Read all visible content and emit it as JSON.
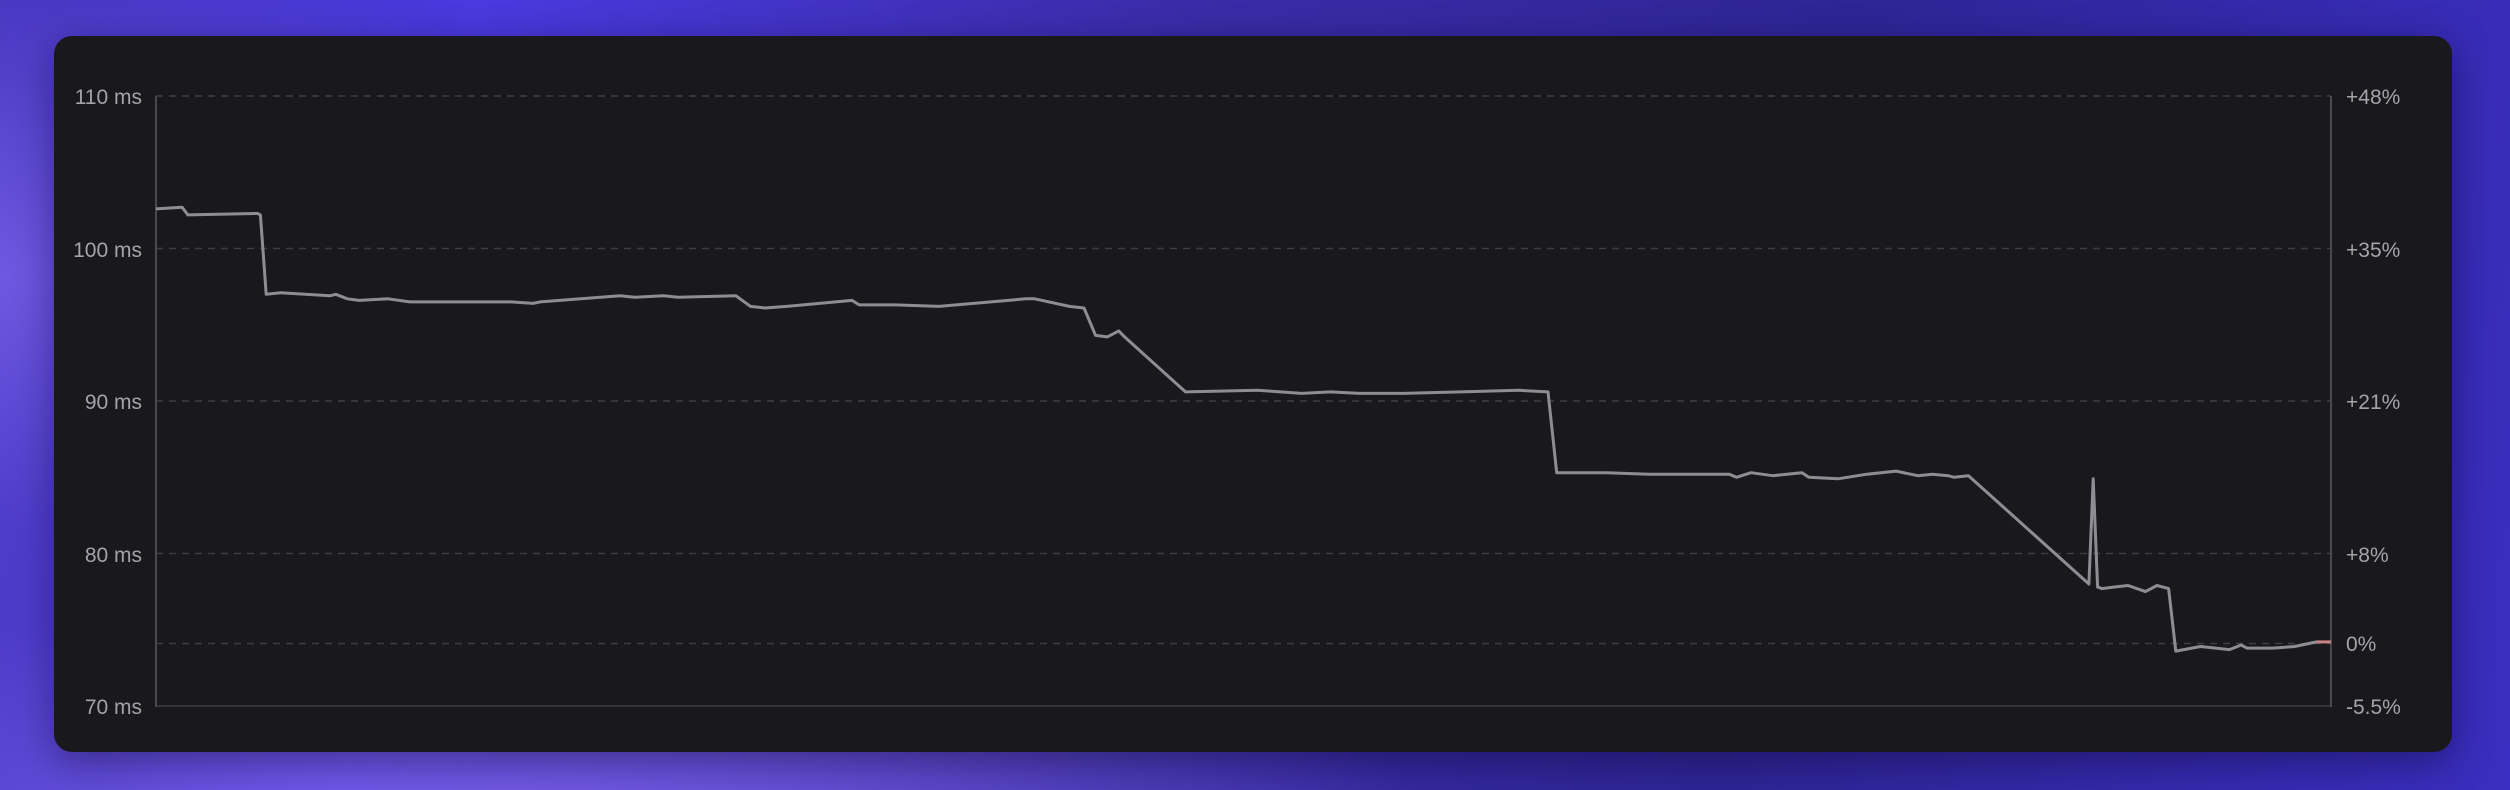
{
  "chart_data": {
    "type": "line",
    "title": "",
    "xlabel": "",
    "ylabel": "",
    "ylim": [
      70,
      110
    ],
    "y_ticks": [
      "110 ms",
      "100 ms",
      "90 ms",
      "80 ms",
      "70 ms"
    ],
    "y_tick_values": [
      110,
      100,
      90,
      80,
      70
    ],
    "y2_ticks": [
      "+48%",
      "+35%",
      "+21%",
      "+8%",
      "0%",
      "-5.5%"
    ],
    "y2_tick_values": [
      110,
      100,
      90,
      80,
      74.1,
      70
    ],
    "grid": true,
    "x_range": [
      0,
      1500
    ],
    "series": [
      {
        "color": "#8e8d93",
        "x": [
          0,
          18,
          22,
          70,
          72,
          76,
          86,
          120,
          124,
          132,
          140,
          160,
          175,
          210,
          245,
          260,
          265,
          320,
          330,
          350,
          360,
          400,
          410,
          420,
          435,
          480,
          485,
          510,
          540,
          600,
          606,
          630,
          640,
          648,
          656,
          664,
          668,
          710,
          760,
          790,
          810,
          830,
          860,
          900,
          940,
          960,
          966,
          1000,
          1030,
          1060,
          1085,
          1090,
          1100,
          1115,
          1135,
          1140,
          1160,
          1180,
          1200,
          1215,
          1225,
          1236,
          1240,
          1250,
          1333,
          1336,
          1339,
          1342,
          1350,
          1360,
          1372,
          1380,
          1388,
          1393,
          1410,
          1430,
          1438,
          1442,
          1460,
          1475,
          1490,
          1500
        ],
        "values": [
          102.6,
          102.7,
          102.2,
          102.3,
          102.2,
          97.0,
          97.1,
          96.9,
          97.0,
          96.7,
          96.6,
          96.7,
          96.5,
          96.5,
          96.5,
          96.4,
          96.5,
          96.9,
          96.8,
          96.9,
          96.8,
          96.9,
          96.2,
          96.1,
          96.2,
          96.6,
          96.3,
          96.3,
          96.2,
          96.7,
          96.7,
          96.2,
          96.1,
          94.3,
          94.2,
          94.6,
          94.2,
          90.6,
          90.7,
          90.5,
          90.6,
          90.5,
          90.5,
          90.6,
          90.7,
          90.6,
          85.3,
          85.3,
          85.2,
          85.2,
          85.2,
          85.0,
          85.3,
          85.1,
          85.3,
          85.0,
          84.9,
          85.2,
          85.4,
          85.1,
          85.2,
          85.1,
          85.0,
          85.1,
          78.0,
          84.9,
          77.8,
          77.7,
          77.8,
          77.9,
          77.5,
          77.9,
          77.7,
          73.6,
          73.9,
          73.7,
          74.0,
          73.8,
          73.8,
          73.9,
          74.2,
          74.2
        ]
      }
    ],
    "baseline_value": 74.1,
    "line_color": "#8e8d93",
    "last_segment_color": "#c98484",
    "grid_color": "#3e3d43",
    "axis_color": "#4a4950",
    "card_color": "#19181d"
  }
}
